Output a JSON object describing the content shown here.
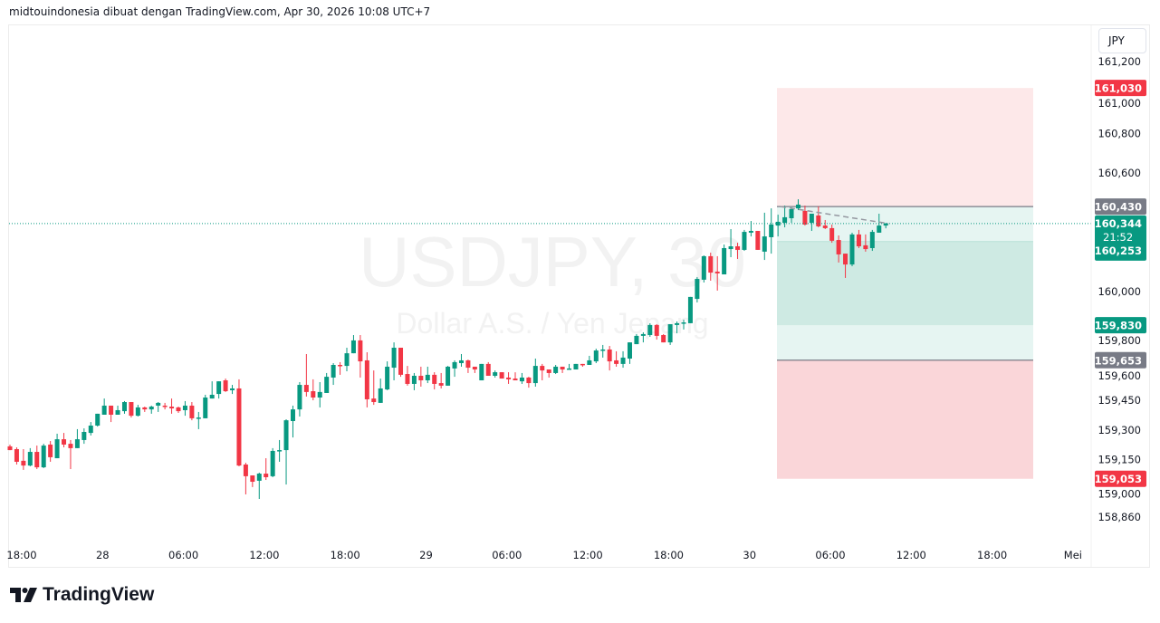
{
  "header": {
    "text": "midtouindonesia dibuat dengan TradingView.com, Apr 30, 2026 10:08 UTC+7"
  },
  "unit_button": "JPY",
  "watermark": {
    "symbol": "USDJPY, 30",
    "description": "Dollar A.S. / Yen Jepang"
  },
  "logo": {
    "text": "TradingView"
  },
  "colors": {
    "up": "#089981",
    "down": "#F23645",
    "entry": "#787b86",
    "stop_zone": "#fde8e9",
    "stop_zone_2": "#fad6d9",
    "target_zone": "#d1ece6",
    "target_zone_light": "#e6f5f2"
  },
  "chart_data": {
    "type": "candlestick",
    "symbol": "USDJPY",
    "interval": "30",
    "x_ticks": [
      "18:00",
      "28",
      "06:00",
      "12:00",
      "18:00",
      "29",
      "06:00",
      "12:00",
      "18:00",
      "30",
      "06:00",
      "12:00",
      "18:00",
      "Mei"
    ],
    "y_ticks": [
      "161,200",
      "161,000",
      "160,800",
      "160,600",
      "160,000",
      "159,800",
      "159,600",
      "159,450",
      "159,300",
      "159,150",
      "159,000",
      "158,860"
    ],
    "y_tick_values": [
      161.2,
      161.0,
      160.8,
      160.6,
      160.0,
      159.8,
      159.6,
      159.45,
      159.3,
      159.15,
      159.0,
      158.86
    ],
    "ylim": [
      158.78,
      161.4
    ],
    "last_price": {
      "value": 160.344,
      "label": "160,344",
      "countdown": "21:52"
    },
    "positions": [
      {
        "type": "short",
        "entry": 160.43,
        "entry_label": "160,430",
        "stop": 161.03,
        "stop_label": "161,030",
        "target": 159.83,
        "target_label": "159,830"
      },
      {
        "type": "long",
        "entry": 159.653,
        "entry_label": "159,653",
        "stop": 159.053,
        "stop_label": "159,053",
        "target": 160.253,
        "target_label": "160,253"
      }
    ],
    "ohlc": [
      [
        159.217,
        159.226,
        159.198,
        159.198
      ],
      [
        159.203,
        159.212,
        159.125,
        159.139
      ],
      [
        159.144,
        159.203,
        159.098,
        159.12
      ],
      [
        159.12,
        159.208,
        159.116,
        159.189
      ],
      [
        159.189,
        159.221,
        159.102,
        159.111
      ],
      [
        159.111,
        159.23,
        159.107,
        159.221
      ],
      [
        159.226,
        159.244,
        159.139,
        159.162
      ],
      [
        159.157,
        159.281,
        159.157,
        159.253
      ],
      [
        159.253,
        159.285,
        159.212,
        159.226
      ],
      [
        159.23,
        159.249,
        159.102,
        159.208
      ],
      [
        159.208,
        159.304,
        159.208,
        159.253
      ],
      [
        159.249,
        159.308,
        159.23,
        159.29
      ],
      [
        159.285,
        159.34,
        159.272,
        159.322
      ],
      [
        159.322,
        159.382,
        159.317,
        159.382
      ],
      [
        159.377,
        159.459,
        159.377,
        159.423
      ],
      [
        159.423,
        159.423,
        159.34,
        159.377
      ],
      [
        159.377,
        159.423,
        159.377,
        159.4
      ],
      [
        159.395,
        159.446,
        159.382,
        159.441
      ],
      [
        159.441,
        159.441,
        159.363,
        159.372
      ],
      [
        159.372,
        159.427,
        159.368,
        159.414
      ],
      [
        159.414,
        159.418,
        159.391,
        159.404
      ],
      [
        159.404,
        159.423,
        159.382,
        159.418
      ],
      [
        159.423,
        159.441,
        159.391,
        159.437
      ],
      [
        159.423,
        159.437,
        159.404,
        159.418
      ],
      [
        159.418,
        159.459,
        159.382,
        159.409
      ],
      [
        159.414,
        159.418,
        159.386,
        159.395
      ],
      [
        159.4,
        159.446,
        159.372,
        159.423
      ],
      [
        159.423,
        159.441,
        159.349,
        159.359
      ],
      [
        159.363,
        159.391,
        159.304,
        159.363
      ],
      [
        159.359,
        159.478,
        159.359,
        159.464
      ],
      [
        159.459,
        159.546,
        159.459,
        159.478
      ],
      [
        159.482,
        159.546,
        159.459,
        159.546
      ],
      [
        159.551,
        159.56,
        159.492,
        159.496
      ],
      [
        159.501,
        159.528,
        159.482,
        159.51
      ],
      [
        159.51,
        159.556,
        159.116,
        159.12
      ],
      [
        159.125,
        159.134,
        158.974,
        159.066
      ],
      [
        159.07,
        159.07,
        159.011,
        159.038
      ],
      [
        159.043,
        159.084,
        158.951,
        159.079
      ],
      [
        159.079,
        159.157,
        159.047,
        159.061
      ],
      [
        159.066,
        159.208,
        159.061,
        159.194
      ],
      [
        159.198,
        159.249,
        159.139,
        159.198
      ],
      [
        159.198,
        159.354,
        159.024,
        159.349
      ],
      [
        159.345,
        159.423,
        159.262,
        159.404
      ],
      [
        159.404,
        159.542,
        159.368,
        159.528
      ],
      [
        159.528,
        159.684,
        159.469,
        159.492
      ],
      [
        159.496,
        159.556,
        159.45,
        159.464
      ],
      [
        159.464,
        159.542,
        159.414,
        159.492
      ],
      [
        159.487,
        159.588,
        159.487,
        159.569
      ],
      [
        159.565,
        159.638,
        159.528,
        159.629
      ],
      [
        159.629,
        159.643,
        159.579,
        159.624
      ],
      [
        159.624,
        159.716,
        159.597,
        159.688
      ],
      [
        159.688,
        159.78,
        159.688,
        159.753
      ],
      [
        159.753,
        159.78,
        159.565,
        159.647
      ],
      [
        159.652,
        159.693,
        159.414,
        159.455
      ],
      [
        159.459,
        159.601,
        159.427,
        159.441
      ],
      [
        159.437,
        159.56,
        159.437,
        159.51
      ],
      [
        159.505,
        159.647,
        159.501,
        159.62
      ],
      [
        159.615,
        159.743,
        159.551,
        159.716
      ],
      [
        159.716,
        159.716,
        159.569,
        159.579
      ],
      [
        159.583,
        159.624,
        159.524,
        159.533
      ],
      [
        159.533,
        159.588,
        159.501,
        159.574
      ],
      [
        159.574,
        159.62,
        159.519,
        159.551
      ],
      [
        159.551,
        159.62,
        159.537,
        159.579
      ],
      [
        159.579,
        159.592,
        159.505,
        159.533
      ],
      [
        159.537,
        159.588,
        159.51,
        159.524
      ],
      [
        159.524,
        159.624,
        159.524,
        159.62
      ],
      [
        159.611,
        159.652,
        159.569,
        159.643
      ],
      [
        159.638,
        159.684,
        159.62,
        159.652
      ],
      [
        159.652,
        159.656,
        159.588,
        159.615
      ],
      [
        159.62,
        159.62,
        159.588,
        159.606
      ],
      [
        159.551,
        159.634,
        159.551,
        159.634
      ],
      [
        159.634,
        159.643,
        159.574,
        159.574
      ],
      [
        159.574,
        159.601,
        159.565,
        159.592
      ],
      [
        159.592,
        159.592,
        159.56,
        159.56
      ],
      [
        159.565,
        159.592,
        159.533,
        159.556
      ],
      [
        159.56,
        159.592,
        159.551,
        159.551
      ],
      [
        159.546,
        159.588,
        159.533,
        159.565
      ],
      [
        159.565,
        159.569,
        159.514,
        159.537
      ],
      [
        159.537,
        159.661,
        159.519,
        159.624
      ],
      [
        159.624,
        159.634,
        159.551,
        159.601
      ],
      [
        159.606,
        159.606,
        159.565,
        159.588
      ],
      [
        159.588,
        159.629,
        159.583,
        159.62
      ],
      [
        159.62,
        159.62,
        159.588,
        159.606
      ],
      [
        159.611,
        159.634,
        159.606,
        159.611
      ],
      [
        159.606,
        159.634,
        159.606,
        159.634
      ],
      [
        159.634,
        159.634,
        159.62,
        159.629
      ],
      [
        159.629,
        159.675,
        159.629,
        159.652
      ],
      [
        159.647,
        159.711,
        159.638,
        159.702
      ],
      [
        159.707,
        159.73,
        159.666,
        159.707
      ],
      [
        159.707,
        159.725,
        159.601,
        159.647
      ],
      [
        159.652,
        159.698,
        159.62,
        159.634
      ],
      [
        159.634,
        159.698,
        159.615,
        159.666
      ],
      [
        159.661,
        159.743,
        159.634,
        159.743
      ],
      [
        159.734,
        159.785,
        159.734,
        159.776
      ],
      [
        159.776,
        159.794,
        159.743,
        159.785
      ],
      [
        159.78,
        159.84,
        159.771,
        159.831
      ],
      [
        159.831,
        159.835,
        159.757,
        159.776
      ],
      [
        159.78,
        159.785,
        159.743,
        159.743
      ],
      [
        159.743,
        159.835,
        159.73,
        159.835
      ],
      [
        159.831,
        159.849,
        159.789,
        159.84
      ],
      [
        159.844,
        159.858,
        159.808,
        159.844
      ],
      [
        159.84,
        159.973,
        159.84,
        159.973
      ],
      [
        159.963,
        160.073,
        159.945,
        160.064
      ],
      [
        160.06,
        160.183,
        160.046,
        160.179
      ],
      [
        160.179,
        160.197,
        160.055,
        160.096
      ],
      [
        160.101,
        160.179,
        160.005,
        160.092
      ],
      [
        160.087,
        160.238,
        160.087,
        160.22
      ],
      [
        160.215,
        160.316,
        160.174,
        160.229
      ],
      [
        160.229,
        160.247,
        160.165,
        160.211
      ],
      [
        160.211,
        160.312,
        160.206,
        160.302
      ],
      [
        160.298,
        160.357,
        160.279,
        160.307
      ],
      [
        160.307,
        160.307,
        160.211,
        160.211
      ],
      [
        160.202,
        160.399,
        160.16,
        160.279
      ],
      [
        160.275,
        160.421,
        160.192,
        160.339
      ],
      [
        160.334,
        160.389,
        160.279,
        160.353
      ],
      [
        160.348,
        160.435,
        160.325,
        160.376
      ],
      [
        160.371,
        160.426,
        160.348,
        160.417
      ],
      [
        160.421,
        160.467,
        160.412,
        160.44
      ],
      [
        160.408,
        160.435,
        160.334,
        160.339
      ],
      [
        160.348,
        160.394,
        160.307,
        160.394
      ],
      [
        160.385,
        160.431,
        160.325,
        160.33
      ],
      [
        160.334,
        160.362,
        160.316,
        160.321
      ],
      [
        160.321,
        160.339,
        160.247,
        160.257
      ],
      [
        160.261,
        160.284,
        160.147,
        160.188
      ],
      [
        160.192,
        160.192,
        160.069,
        160.137
      ],
      [
        160.137,
        160.298,
        160.128,
        160.289
      ],
      [
        160.289,
        160.312,
        160.22,
        160.229
      ],
      [
        160.234,
        160.289,
        160.202,
        160.215
      ],
      [
        160.22,
        160.312,
        160.206,
        160.302
      ],
      [
        160.298,
        160.394,
        160.298,
        160.334
      ],
      [
        160.334,
        160.348,
        160.32,
        160.344
      ]
    ]
  }
}
